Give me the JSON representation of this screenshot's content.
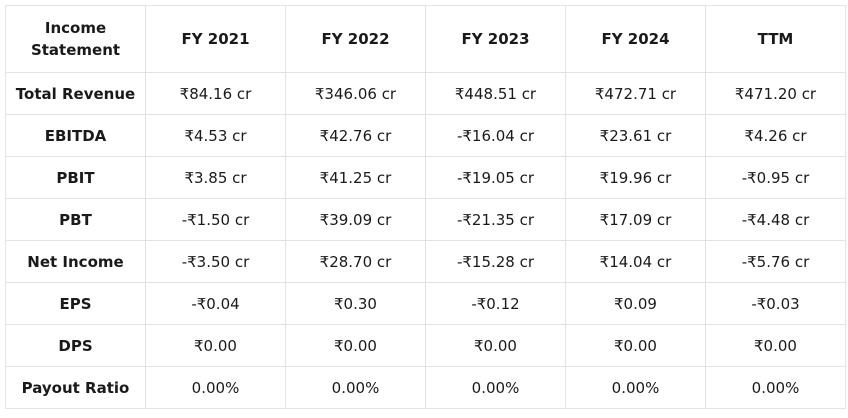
{
  "table": {
    "corner_header": "Income Statement",
    "columns": [
      "FY 2021",
      "FY 2022",
      "FY 2023",
      "FY 2024",
      "TTM"
    ],
    "rows": [
      {
        "label": "Total Revenue",
        "values": [
          "₹84.16 cr",
          "₹346.06 cr",
          "₹448.51 cr",
          "₹472.71 cr",
          "₹471.20 cr"
        ]
      },
      {
        "label": "EBITDA",
        "values": [
          "₹4.53 cr",
          "₹42.76 cr",
          "-₹16.04 cr",
          "₹23.61 cr",
          "₹4.26 cr"
        ]
      },
      {
        "label": "PBIT",
        "values": [
          "₹3.85 cr",
          "₹41.25 cr",
          "-₹19.05 cr",
          "₹19.96 cr",
          "-₹0.95 cr"
        ]
      },
      {
        "label": "PBT",
        "values": [
          "-₹1.50 cr",
          "₹39.09 cr",
          "-₹21.35 cr",
          "₹17.09 cr",
          "-₹4.48 cr"
        ]
      },
      {
        "label": "Net Income",
        "values": [
          "-₹3.50 cr",
          "₹28.70 cr",
          "-₹15.28 cr",
          "₹14.04 cr",
          "-₹5.76 cr"
        ]
      },
      {
        "label": "EPS",
        "values": [
          "-₹0.04",
          "₹0.30",
          "-₹0.12",
          "₹0.09",
          "-₹0.03"
        ]
      },
      {
        "label": "DPS",
        "values": [
          "₹0.00",
          "₹0.00",
          "₹0.00",
          "₹0.00",
          "₹0.00"
        ]
      },
      {
        "label": "Payout Ratio",
        "values": [
          "0.00%",
          "0.00%",
          "0.00%",
          "0.00%",
          "0.00%"
        ]
      }
    ]
  }
}
